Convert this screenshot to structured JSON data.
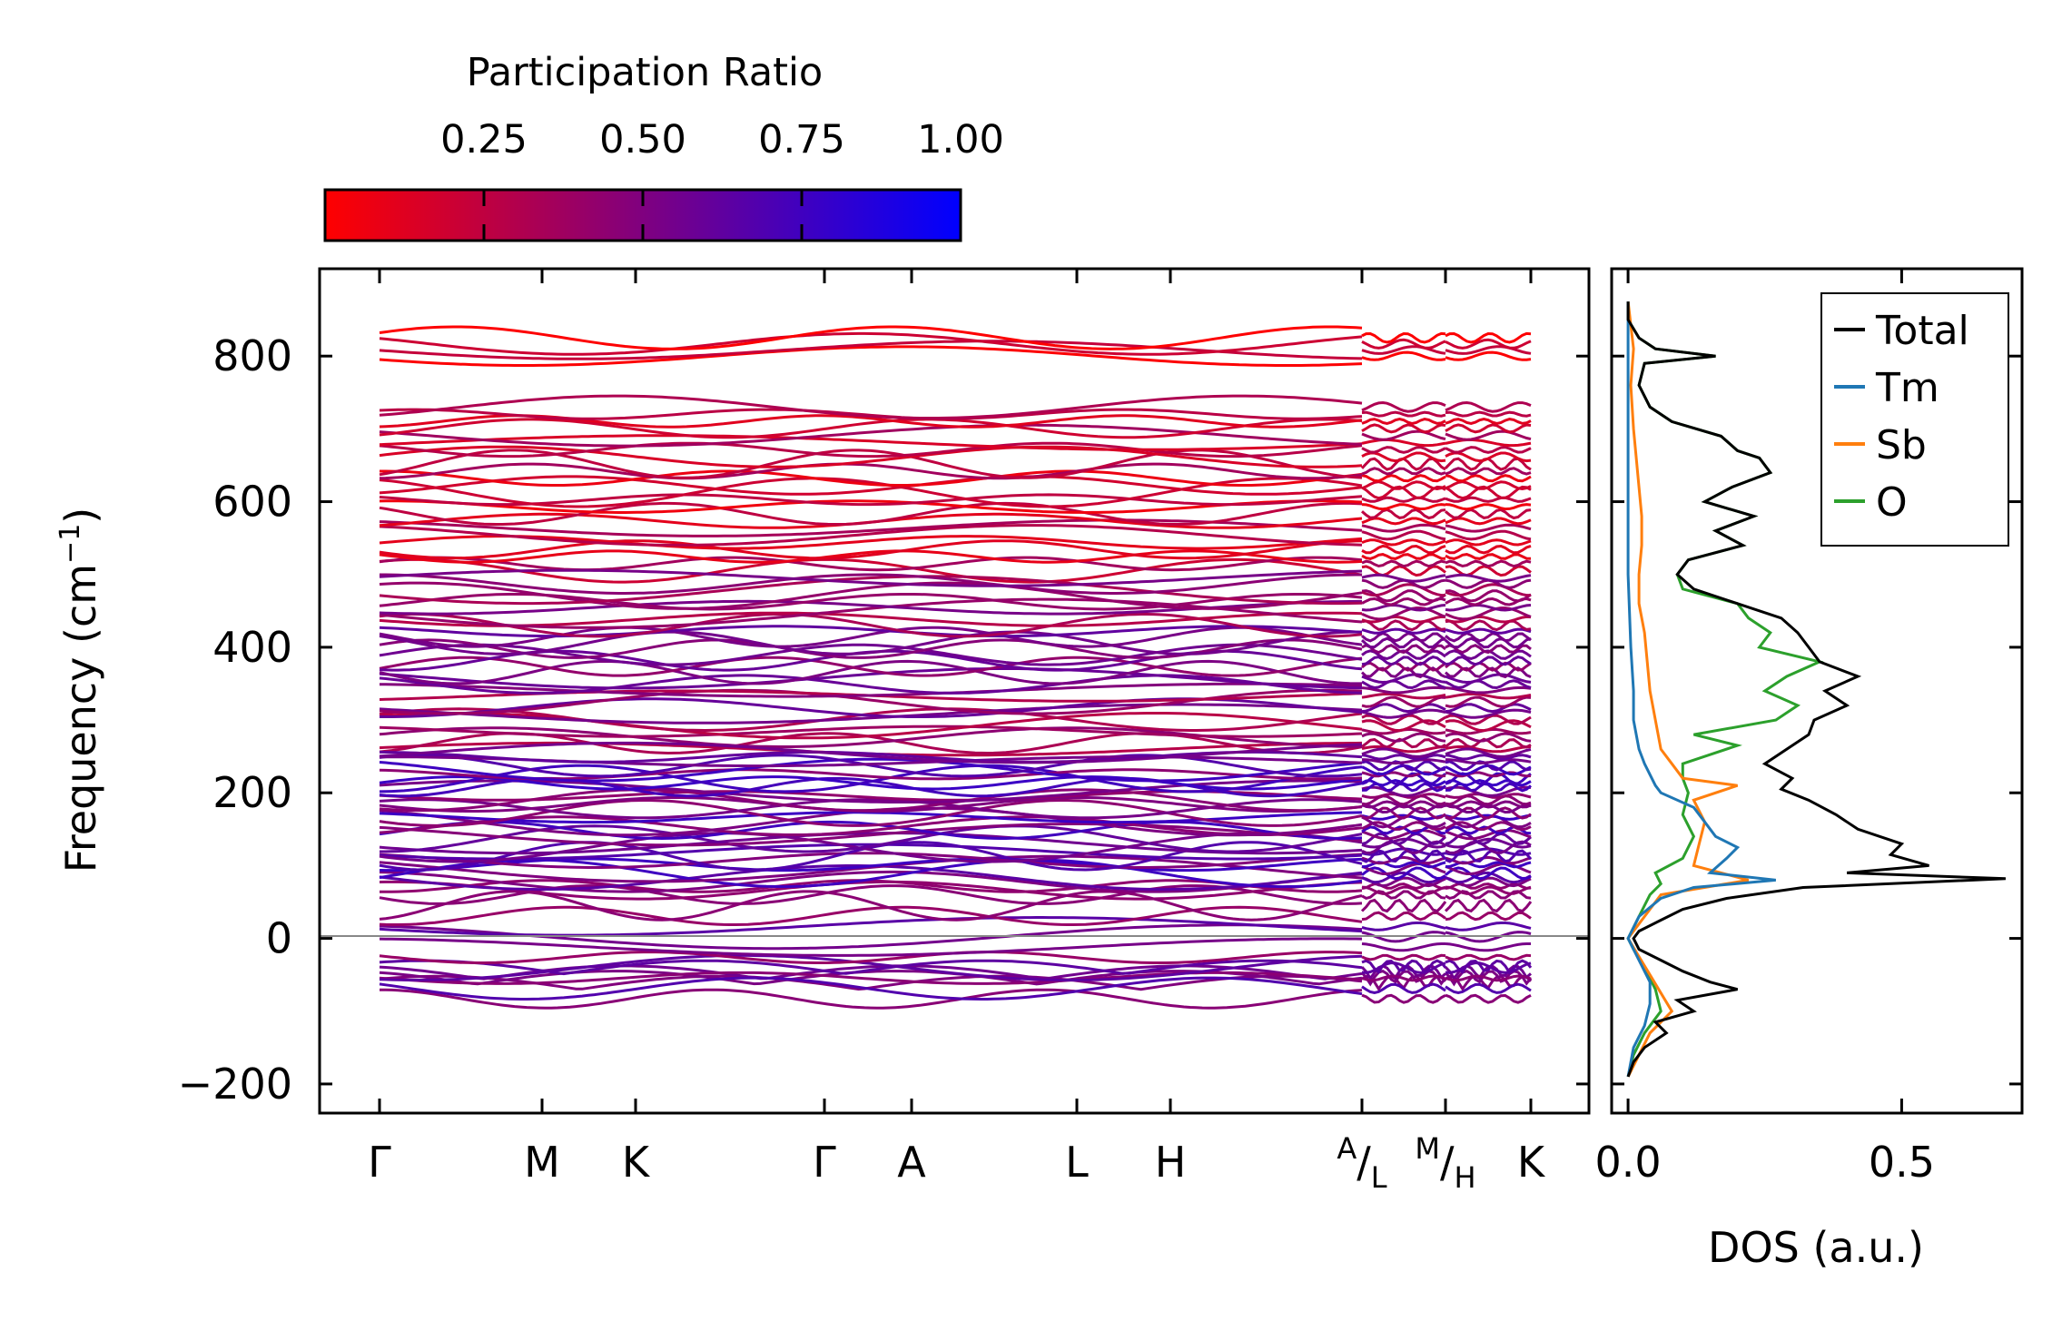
{
  "chart_data": [
    {
      "type": "line",
      "title": "",
      "xlabel": "",
      "ylabel": "Frequency (cm$^{-1}$)",
      "ylabel_text": "Frequency (cm",
      "ylabel_sup": "−1",
      "ylabel_close": ")",
      "ylim": [
        -240,
        920
      ],
      "yticks": [
        -200,
        0,
        200,
        400,
        600,
        800
      ],
      "ytick_labels": [
        "−200",
        "0",
        "200",
        "400",
        "600",
        "800"
      ],
      "x_path": [
        "Γ",
        "M",
        "K",
        "Γ",
        "A",
        "L",
        "H",
        "A/L",
        "M/H",
        "K"
      ],
      "x_breaks_at": [
        "A/L",
        "M/H"
      ],
      "colorbar": {
        "label": "Participation Ratio",
        "ticks": [
          0.25,
          0.5,
          0.75,
          1.0
        ],
        "tick_labels": [
          "0.25",
          "0.50",
          "0.75",
          "1.00"
        ],
        "range": [
          0.0,
          1.0
        ],
        "colors": [
          "#ff0000",
          "#0000ff"
        ]
      },
      "zero_line": 0,
      "band_groups": [
        {
          "range": [
            800,
            825
          ],
          "count": 4,
          "participation": 0.1
        },
        {
          "range": [
            505,
            730
          ],
          "count": 24,
          "participation": 0.2
        },
        {
          "range": [
            260,
            495
          ],
          "count": 30,
          "participation": 0.45
        },
        {
          "range": [
            60,
            255
          ],
          "count": 34,
          "participation": 0.6
        },
        {
          "range": [
            -140,
            45
          ],
          "count": 14,
          "participation": 0.55
        }
      ]
    },
    {
      "type": "line",
      "xlabel": "DOS (a.u.)",
      "ylabel": "",
      "xlim": [
        -0.03,
        0.72
      ],
      "ylim": [
        -240,
        920
      ],
      "xticks": [
        0.0,
        0.5
      ],
      "xtick_labels": [
        "0.0",
        "0.5"
      ],
      "legend_position": "top-right",
      "series": [
        {
          "name": "Total",
          "color": "#000000",
          "points": [
            [
              -190,
              0.0
            ],
            [
              -170,
              0.01
            ],
            [
              -150,
              0.03
            ],
            [
              -130,
              0.07
            ],
            [
              -115,
              0.05
            ],
            [
              -100,
              0.12
            ],
            [
              -85,
              0.09
            ],
            [
              -70,
              0.2
            ],
            [
              -60,
              0.15
            ],
            [
              -45,
              0.1
            ],
            [
              -30,
              0.06
            ],
            [
              -15,
              0.02
            ],
            [
              0,
              0.01
            ],
            [
              10,
              0.02
            ],
            [
              25,
              0.06
            ],
            [
              40,
              0.1
            ],
            [
              55,
              0.18
            ],
            [
              70,
              0.32
            ],
            [
              82,
              0.69
            ],
            [
              90,
              0.4
            ],
            [
              100,
              0.55
            ],
            [
              115,
              0.48
            ],
            [
              130,
              0.5
            ],
            [
              150,
              0.42
            ],
            [
              170,
              0.38
            ],
            [
              190,
              0.33
            ],
            [
              205,
              0.28
            ],
            [
              220,
              0.3
            ],
            [
              240,
              0.25
            ],
            [
              260,
              0.29
            ],
            [
              280,
              0.33
            ],
            [
              300,
              0.34
            ],
            [
              320,
              0.4
            ],
            [
              340,
              0.36
            ],
            [
              360,
              0.42
            ],
            [
              380,
              0.35
            ],
            [
              400,
              0.33
            ],
            [
              420,
              0.31
            ],
            [
              440,
              0.28
            ],
            [
              460,
              0.2
            ],
            [
              480,
              0.12
            ],
            [
              500,
              0.09
            ],
            [
              520,
              0.11
            ],
            [
              540,
              0.21
            ],
            [
              560,
              0.16
            ],
            [
              580,
              0.23
            ],
            [
              600,
              0.14
            ],
            [
              620,
              0.19
            ],
            [
              640,
              0.26
            ],
            [
              660,
              0.24
            ],
            [
              670,
              0.2
            ],
            [
              690,
              0.17
            ],
            [
              710,
              0.08
            ],
            [
              730,
              0.04
            ],
            [
              760,
              0.02
            ],
            [
              790,
              0.03
            ],
            [
              800,
              0.16
            ],
            [
              810,
              0.05
            ],
            [
              825,
              0.02
            ],
            [
              850,
              0.0
            ],
            [
              875,
              0.0
            ]
          ]
        },
        {
          "name": "Tm",
          "color": "#1f77b4",
          "points": [
            [
              -190,
              0.0
            ],
            [
              -150,
              0.01
            ],
            [
              -120,
              0.03
            ],
            [
              -90,
              0.04
            ],
            [
              -60,
              0.04
            ],
            [
              -30,
              0.02
            ],
            [
              0,
              0.0
            ],
            [
              30,
              0.02
            ],
            [
              55,
              0.06
            ],
            [
              70,
              0.12
            ],
            [
              80,
              0.27
            ],
            [
              90,
              0.15
            ],
            [
              110,
              0.18
            ],
            [
              125,
              0.2
            ],
            [
              140,
              0.16
            ],
            [
              160,
              0.14
            ],
            [
              180,
              0.12
            ],
            [
              200,
              0.06
            ],
            [
              210,
              0.05
            ],
            [
              225,
              0.04
            ],
            [
              240,
              0.03
            ],
            [
              260,
              0.02
            ],
            [
              280,
              0.015
            ],
            [
              300,
              0.01
            ],
            [
              340,
              0.01
            ],
            [
              400,
              0.005
            ],
            [
              500,
              0.0
            ],
            [
              875,
              0.0
            ]
          ]
        },
        {
          "name": "Sb",
          "color": "#ff7f0e",
          "points": [
            [
              -190,
              0.0
            ],
            [
              -160,
              0.02
            ],
            [
              -130,
              0.04
            ],
            [
              -100,
              0.08
            ],
            [
              -75,
              0.06
            ],
            [
              -50,
              0.04
            ],
            [
              -25,
              0.02
            ],
            [
              0,
              0.0
            ],
            [
              30,
              0.03
            ],
            [
              60,
              0.06
            ],
            [
              80,
              0.22
            ],
            [
              100,
              0.12
            ],
            [
              130,
              0.13
            ],
            [
              160,
              0.14
            ],
            [
              190,
              0.12
            ],
            [
              210,
              0.2
            ],
            [
              220,
              0.1
            ],
            [
              240,
              0.08
            ],
            [
              260,
              0.06
            ],
            [
              300,
              0.05
            ],
            [
              340,
              0.04
            ],
            [
              380,
              0.035
            ],
            [
              420,
              0.03
            ],
            [
              460,
              0.02
            ],
            [
              500,
              0.02
            ],
            [
              540,
              0.025
            ],
            [
              580,
              0.025
            ],
            [
              620,
              0.02
            ],
            [
              660,
              0.015
            ],
            [
              700,
              0.01
            ],
            [
              760,
              0.005
            ],
            [
              810,
              0.01
            ],
            [
              875,
              0.0
            ]
          ]
        },
        {
          "name": "O",
          "color": "#2ca02c",
          "points": [
            [
              -190,
              0.0
            ],
            [
              -160,
              0.01
            ],
            [
              -130,
              0.03
            ],
            [
              -100,
              0.06
            ],
            [
              -70,
              0.05
            ],
            [
              -40,
              0.03
            ],
            [
              -15,
              0.01
            ],
            [
              0,
              0.0
            ],
            [
              30,
              0.02
            ],
            [
              60,
              0.04
            ],
            [
              75,
              0.06
            ],
            [
              90,
              0.05
            ],
            [
              110,
              0.1
            ],
            [
              140,
              0.12
            ],
            [
              170,
              0.1
            ],
            [
              200,
              0.11
            ],
            [
              220,
              0.1
            ],
            [
              240,
              0.1
            ],
            [
              265,
              0.2
            ],
            [
              280,
              0.12
            ],
            [
              300,
              0.27
            ],
            [
              320,
              0.31
            ],
            [
              340,
              0.25
            ],
            [
              360,
              0.29
            ],
            [
              380,
              0.35
            ],
            [
              400,
              0.24
            ],
            [
              420,
              0.26
            ],
            [
              440,
              0.22
            ],
            [
              460,
              0.2
            ],
            [
              480,
              0.1
            ],
            [
              500,
              0.09
            ],
            [
              520,
              0.11
            ],
            [
              540,
              0.21
            ],
            [
              560,
              0.16
            ],
            [
              580,
              0.23
            ],
            [
              600,
              0.14
            ],
            [
              620,
              0.19
            ],
            [
              640,
              0.26
            ],
            [
              660,
              0.24
            ],
            [
              670,
              0.2
            ],
            [
              690,
              0.17
            ],
            [
              710,
              0.08
            ],
            [
              730,
              0.04
            ],
            [
              760,
              0.02
            ],
            [
              790,
              0.03
            ],
            [
              800,
              0.16
            ],
            [
              810,
              0.05
            ],
            [
              825,
              0.02
            ],
            [
              850,
              0.0
            ],
            [
              875,
              0.0
            ]
          ]
        }
      ]
    }
  ]
}
